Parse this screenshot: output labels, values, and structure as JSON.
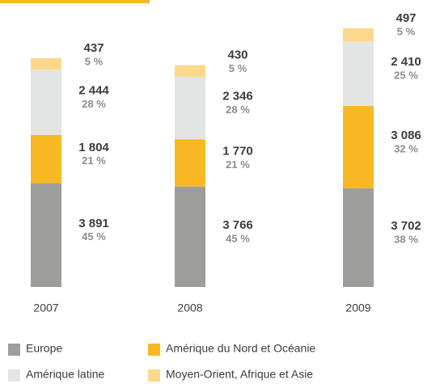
{
  "chart_data": {
    "type": "stacked_bar",
    "categories": [
      "2007",
      "2008",
      "2009"
    ],
    "series": [
      {
        "name": "Europe",
        "color": "#9d9d9c",
        "values": [
          3891,
          3766,
          3702
        ],
        "value_labels": [
          "3 891",
          "3 766",
          "3 702"
        ],
        "shares": [
          "45 %",
          "45 %",
          "38 %"
        ]
      },
      {
        "name": "Amérique du Nord et Océanie",
        "color": "#f9b823",
        "values": [
          1804,
          1770,
          3086
        ],
        "value_labels": [
          "1 804",
          "1 770",
          "3 086"
        ],
        "shares": [
          "21 %",
          "21 %",
          "32 %"
        ]
      },
      {
        "name": "Amérique latine",
        "color": "#e3e5e4",
        "values": [
          2444,
          2346,
          2410
        ],
        "value_labels": [
          "2 444",
          "2 346",
          "2 410"
        ],
        "shares": [
          "28 %",
          "28 %",
          "25 %"
        ]
      },
      {
        "name": "Moyen-Orient, Afrique et Asie",
        "color": "#fdd88a",
        "values": [
          437,
          430,
          497
        ],
        "value_labels": [
          "437",
          "430",
          "497"
        ],
        "shares": [
          "5 %",
          "5 %",
          "5 %"
        ]
      }
    ]
  }
}
